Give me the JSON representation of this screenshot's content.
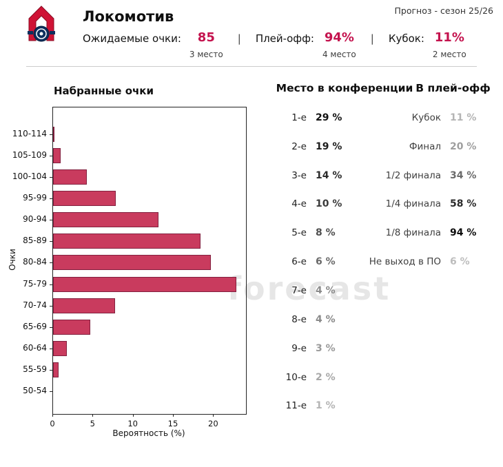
{
  "header": {
    "team": "Локомотив",
    "forecast_label": "Прогноз - сезон 25/26",
    "separator": "|",
    "stats": [
      {
        "label": "Ожидаемые очки:",
        "value": "85",
        "place": "3 место"
      },
      {
        "label": "Плей-офф:",
        "value": "94%",
        "place": "4 место"
      },
      {
        "label": "Кубок:",
        "value": "11%",
        "place": "2 место"
      }
    ]
  },
  "colors": {
    "accent": "#c4134e",
    "bar_fill": "#c93b5e",
    "bar_edge": "#82203f",
    "axis": "#222222"
  },
  "watermark": {
    "text": "forecast"
  },
  "chart_data": {
    "type": "bar",
    "orientation": "horizontal",
    "title": "Набранные очки",
    "xlabel": "Вероятность (%)",
    "ylabel": "Очки",
    "categories": [
      "110-114",
      "105-109",
      "100-104",
      "95-99",
      "90-94",
      "85-89",
      "80-84",
      "75-79",
      "70-74",
      "65-69",
      "60-64",
      "55-59",
      "50-54"
    ],
    "values": [
      0.2,
      0.9,
      4.2,
      7.8,
      13.1,
      18.3,
      19.6,
      22.8,
      7.7,
      4.6,
      1.7,
      0.7,
      0
    ],
    "xlim": [
      0,
      24
    ],
    "xticks": [
      0,
      5,
      10,
      15,
      20
    ],
    "grid": false,
    "legend": null
  },
  "conference": {
    "title": "Место в конференции",
    "rows": [
      {
        "label": "1-е",
        "value": "29 %",
        "v": 29,
        "color": "#111111"
      },
      {
        "label": "2-е",
        "value": "19 %",
        "v": 19,
        "color": "#1c1c1c"
      },
      {
        "label": "3-е",
        "value": "14 %",
        "v": 14,
        "color": "#2a2a2a"
      },
      {
        "label": "4-е",
        "value": "10 %",
        "v": 10,
        "color": "#3a3a3a"
      },
      {
        "label": "5-е",
        "value": "8 %",
        "v": 8,
        "color": "#4f4f4f"
      },
      {
        "label": "6-е",
        "value": "6 %",
        "v": 6,
        "color": "#6a6a6a"
      },
      {
        "label": "7-е",
        "value": "4 %",
        "v": 4,
        "color": "#8a8a8a"
      },
      {
        "label": "8-е",
        "value": "4 %",
        "v": 4,
        "color": "#8a8a8a"
      },
      {
        "label": "9-е",
        "value": "3 %",
        "v": 3,
        "color": "#9a9a9a"
      },
      {
        "label": "10-е",
        "value": "2 %",
        "v": 2,
        "color": "#a8a8a8"
      },
      {
        "label": "11-е",
        "value": "1 %",
        "v": 1,
        "color": "#b4b4b4"
      }
    ]
  },
  "playoff": {
    "title": "В плей-офф",
    "rows": [
      {
        "label": "Кубок",
        "value": "11 %",
        "v": 11,
        "color": "#b4b4b4"
      },
      {
        "label": "Финал",
        "value": "20 %",
        "v": 20,
        "color": "#9e9e9e"
      },
      {
        "label": "1/2 финала",
        "value": "34 %",
        "v": 34,
        "color": "#6a6a6a"
      },
      {
        "label": "1/4 финала",
        "value": "58 %",
        "v": 58,
        "color": "#2a2a2a"
      },
      {
        "label": "1/8 финала",
        "value": "94 %",
        "v": 94,
        "color": "#0d0d0d"
      },
      {
        "label": "Не выход в ПО",
        "value": "6 %",
        "v": 6,
        "color": "#bdbdbd"
      }
    ]
  }
}
